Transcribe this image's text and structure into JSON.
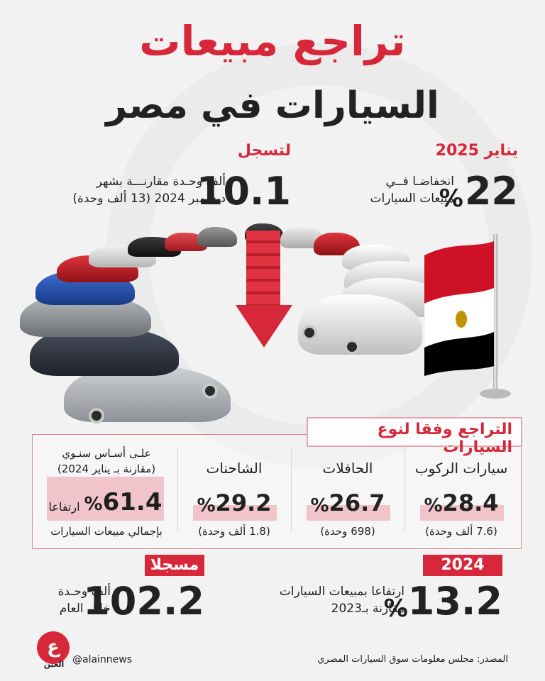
{
  "title": {
    "line1": "تراجع مبيعات",
    "line2": "السيارات في مصر"
  },
  "top_right": {
    "date": "يناير 2025",
    "value": "22",
    "percent_sign": "%",
    "desc_line1": "انخفاضـا فــي",
    "desc_line2": "مبيعات السيارات"
  },
  "top_left": {
    "heading": "لتسجل",
    "value": "10.1",
    "desc_line1": "ألف وحـدة مقارنـــة بشهر",
    "desc_line2": "ديسمبر 2024 (13 ألف وحدة)"
  },
  "panel": {
    "title": "التراجع وفقا لنوع السيارات",
    "categories": [
      {
        "label": "سيارات الركوب",
        "value": "28.4",
        "percent_sign": "%",
        "sub": "(7.6 ألف وحدة)"
      },
      {
        "label": "الحافلات",
        "value": "26.7",
        "percent_sign": "%",
        "sub": "(698 وحدة)"
      },
      {
        "label": "الشاحنات",
        "value": "29.2",
        "percent_sign": "%",
        "sub": "(1.8 ألف وحدة)"
      }
    ],
    "yearly": {
      "line1": "علـى أسـاس سنـوي",
      "line2": "(مقارنة بـ يناير 2024)",
      "value": "61.4",
      "percent_sign": "%",
      "word": "ارتفاعا",
      "line3": "بإجمالي مبيعات السيارات"
    }
  },
  "bottom_right": {
    "badge": "2024",
    "value": "13.2",
    "percent_sign": "%",
    "desc_line1": "ارتفاعا بمبيعات السيارات",
    "desc_line2": "مقارنة بـ2023"
  },
  "bottom_left": {
    "badge": "مسجلا",
    "value": "102.2",
    "desc_line1": "ألف وحـدة",
    "desc_line2": "خلال العام"
  },
  "footer": {
    "source": "المصدر: مجلس معلومات سوق السيارات المصري",
    "handle": "@alainnews",
    "logo_glyph": "ع",
    "logo_text": "العين"
  },
  "colors": {
    "accent": "#d6283a",
    "highlight": "#f0c4ca",
    "flag_red": "#ce1126",
    "flag_white": "#ffffff",
    "flag_black": "#000000",
    "flag_eagle": "#c09300"
  },
  "icons": [
    "down-arrow-icon",
    "egypt-flag-icon",
    "alain-logo-icon"
  ]
}
